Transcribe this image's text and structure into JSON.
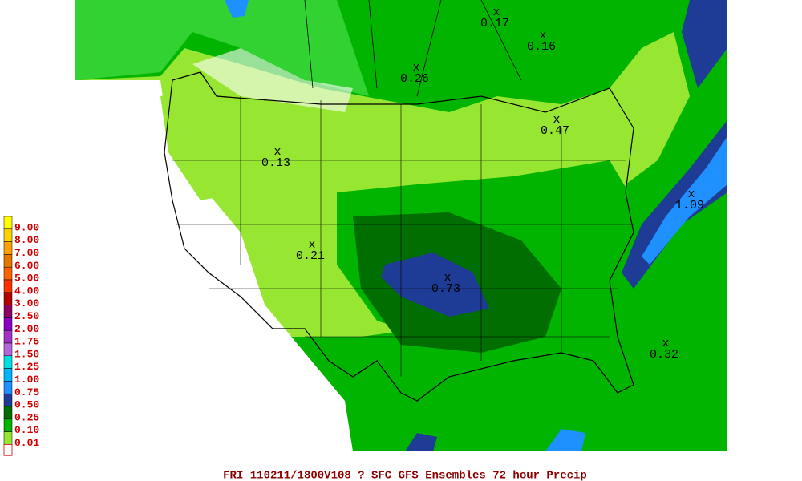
{
  "legend": [
    {
      "label": "9.00",
      "color": "#ffff00"
    },
    {
      "label": "8.00",
      "color": "#ffd200"
    },
    {
      "label": "7.00",
      "color": "#ffa000"
    },
    {
      "label": "6.00",
      "color": "#e67800"
    },
    {
      "label": "5.00",
      "color": "#ff6400"
    },
    {
      "label": "4.00",
      "color": "#ff3200"
    },
    {
      "label": "3.00",
      "color": "#b40000"
    },
    {
      "label": "2.50",
      "color": "#8c0064"
    },
    {
      "label": "2.00",
      "color": "#8c00c8"
    },
    {
      "label": "1.75",
      "color": "#a032c8"
    },
    {
      "label": "1.50",
      "color": "#b464dc"
    },
    {
      "label": "1.25",
      "color": "#00e0e0"
    },
    {
      "label": "1.00",
      "color": "#00b4ff"
    },
    {
      "label": "0.75",
      "color": "#1e90ff"
    },
    {
      "label": "0.50",
      "color": "#1e3c96"
    },
    {
      "label": "0.25",
      "color": "#006e00"
    },
    {
      "label": "0.10",
      "color": "#00b400"
    },
    {
      "label": "0.01",
      "color": "#96e632"
    }
  ],
  "points": [
    {
      "label": "0.17"
    },
    {
      "label": "0.16"
    },
    {
      "label": "0.26"
    },
    {
      "label": "0.13"
    },
    {
      "label": "0.47"
    },
    {
      "label": "1.09"
    },
    {
      "label": "0.21"
    },
    {
      "label": "0.73"
    },
    {
      "label": "0.32"
    }
  ],
  "caption": "FRI 110211/1800V108  ? SFC GFS Ensembles 72 hour Precip"
}
